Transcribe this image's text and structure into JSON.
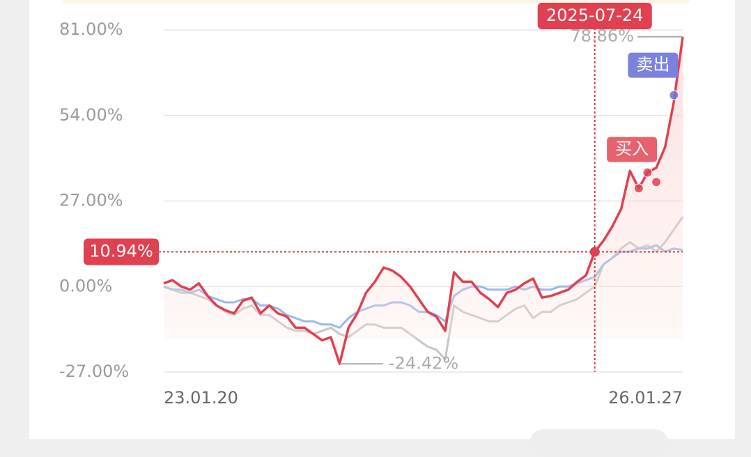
{
  "chart_data": {
    "type": "line",
    "categories": [
      "23.01.20",
      null,
      null,
      null,
      null,
      null,
      null,
      null,
      null,
      null,
      null,
      null,
      null,
      null,
      null,
      null,
      null,
      null,
      null,
      null,
      null,
      null,
      null,
      null,
      null,
      null,
      null,
      null,
      null,
      null,
      null,
      null,
      null,
      null,
      null,
      null,
      null,
      null,
      null,
      null,
      null,
      null,
      null,
      null,
      null,
      null,
      null,
      null,
      null,
      null,
      null,
      null,
      null,
      null,
      null,
      null,
      null,
      null,
      null,
      "26.01.27"
    ],
    "ylim": [
      -27,
      81
    ],
    "yticks": [
      {
        "value": -27,
        "label": "-27.00%"
      },
      {
        "value": 0,
        "label": "0.00%"
      },
      {
        "value": 27,
        "label": "27.00%"
      },
      {
        "value": 54,
        "label": "54.00%"
      },
      {
        "value": 81,
        "label": "81.00%"
      }
    ],
    "grid": true,
    "series": [
      {
        "color": "#c8c6c4",
        "values": [
          0,
          -1,
          -2,
          -2,
          -3,
          -4,
          -6,
          -8,
          -9,
          -7,
          -6,
          -9,
          -9,
          -11,
          -13,
          -14,
          -14,
          -15,
          -14,
          -13,
          -15,
          -16,
          -14,
          -12,
          -12,
          -13,
          -13,
          -13,
          -15,
          -17,
          -19,
          -20,
          -23,
          -6,
          -8,
          -9,
          -10,
          -11,
          -11,
          -9,
          -7,
          -6,
          -10,
          -8,
          -8,
          -6,
          -5,
          -4,
          -2,
          0,
          7,
          9,
          12,
          14,
          12,
          13,
          11,
          14,
          18,
          22
        ]
      },
      {
        "color": "#9ab8ea",
        "values": [
          0,
          -1,
          -1,
          -2,
          -1,
          -3,
          -4,
          -5,
          -5,
          -4,
          -4,
          -6,
          -6,
          -7,
          -9,
          -10,
          -11,
          -11,
          -12,
          -12,
          -13,
          -10,
          -8,
          -7,
          -6,
          -6,
          -5,
          -5,
          -6,
          -8,
          -8,
          -9,
          -11,
          -3,
          -1,
          0,
          0,
          -1,
          -1,
          -1,
          0,
          -1,
          0,
          -1,
          -1,
          0,
          0,
          1,
          2,
          3,
          7,
          9,
          11,
          11,
          12,
          12,
          13,
          11,
          12,
          11.5
        ]
      },
      {
        "color": "#e0404f",
        "fill": true,
        "values": [
          1,
          2,
          0,
          -1,
          1,
          -3,
          -6,
          -7.5,
          -8.5,
          -4.5,
          -3.5,
          -8.5,
          -6,
          -8.5,
          -9.5,
          -13,
          -13,
          -15,
          -17,
          -16,
          -24.42,
          -13,
          -8.5,
          -2,
          1.5,
          6,
          5,
          3,
          0,
          -4,
          -8,
          -9.5,
          -14,
          4.5,
          1.5,
          1.5,
          -2,
          -4,
          -6.5,
          -2,
          -1,
          1,
          2.5,
          -3.5,
          -3,
          -2,
          -1,
          1.5,
          3.5,
          10.94,
          14.5,
          19,
          24.5,
          36.5,
          31,
          36,
          37.5,
          44,
          58.5,
          78.86
        ]
      }
    ],
    "crosshair": {
      "label": "2025-07-24",
      "index": 49,
      "value": 10.94,
      "value_label": "10.94%"
    },
    "max_label": {
      "value": 78.86,
      "label": "78.86%"
    },
    "min_label": {
      "value": -24.42,
      "label": "-24.42%"
    },
    "buy": {
      "label": "买入",
      "x": [
        54,
        55,
        56
      ],
      "values": [
        31,
        36,
        33
      ]
    },
    "sell": {
      "label": "卖出",
      "x": [
        58
      ],
      "values": [
        60.4
      ]
    }
  }
}
